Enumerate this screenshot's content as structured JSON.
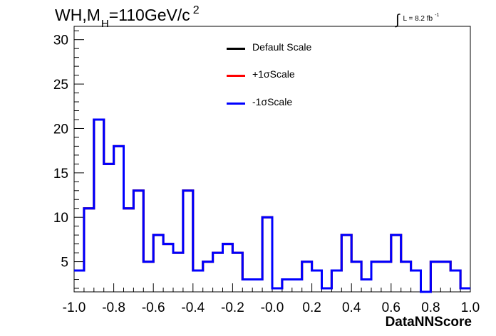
{
  "chart_data": {
    "type": "step-histogram",
    "title": {
      "main": "WH,M",
      "sub": "H",
      "rest": "=110GeV/c",
      "sup": "2"
    },
    "lumi": {
      "symbol": "∫",
      "text": "L = 8.2 fb",
      "sup": "-1"
    },
    "xlabel": "DataNNScore",
    "ylabel": "",
    "xlim": [
      -1.0,
      1.0
    ],
    "ylim": [
      1.6,
      31.5
    ],
    "xticks": [
      "-1.0",
      "-0.8",
      "-0.6",
      "-0.4",
      "-0.2",
      "-0.0",
      "0.2",
      "0.4",
      "0.6",
      "0.8",
      "1.0"
    ],
    "xtick_values": [
      -1.0,
      -0.8,
      -0.6,
      -0.4,
      -0.2,
      0.0,
      0.2,
      0.4,
      0.6,
      0.8,
      1.0
    ],
    "yticks": [
      "5",
      "10",
      "15",
      "20",
      "25",
      "30"
    ],
    "ytick_values": [
      5,
      10,
      15,
      20,
      25,
      30
    ],
    "bin_edges_start": -1.0,
    "bin_width": 0.05,
    "series": [
      {
        "name": "Default Scale",
        "color": "#000000",
        "values": [
          4,
          11,
          21,
          16,
          18,
          11,
          13,
          5,
          8,
          7,
          6,
          13,
          4,
          5,
          6,
          7,
          6,
          3,
          3,
          10,
          2,
          3,
          3,
          5,
          4,
          2,
          4,
          8,
          5,
          3,
          5,
          5,
          8,
          5,
          4,
          1.6,
          5,
          5,
          4,
          2
        ]
      },
      {
        "name": "+1σScale",
        "color": "#ff0000",
        "values": [
          4,
          11,
          21,
          16,
          18,
          11,
          13,
          5,
          8,
          7,
          6,
          13,
          4,
          5,
          6,
          7,
          6,
          3,
          3,
          10,
          2,
          3,
          3,
          5,
          4,
          2,
          4,
          8,
          5,
          3,
          5,
          5,
          8,
          5,
          4,
          1.6,
          5,
          5,
          4,
          2
        ]
      },
      {
        "name": "-1σScale",
        "color": "#0000ff",
        "values": [
          4,
          11,
          21,
          16,
          18,
          11,
          13,
          5,
          8,
          7,
          6,
          13,
          4,
          5,
          6,
          7,
          6,
          3,
          3,
          10,
          2,
          3,
          3,
          5,
          4,
          2,
          4,
          8,
          5,
          3,
          5,
          5,
          8,
          5,
          4,
          1.6,
          5,
          5,
          4,
          2
        ]
      }
    ],
    "legend": {
      "position": "top-center",
      "entries": [
        "Default Scale",
        "+1σScale",
        "-1σScale"
      ]
    },
    "grid": false
  }
}
